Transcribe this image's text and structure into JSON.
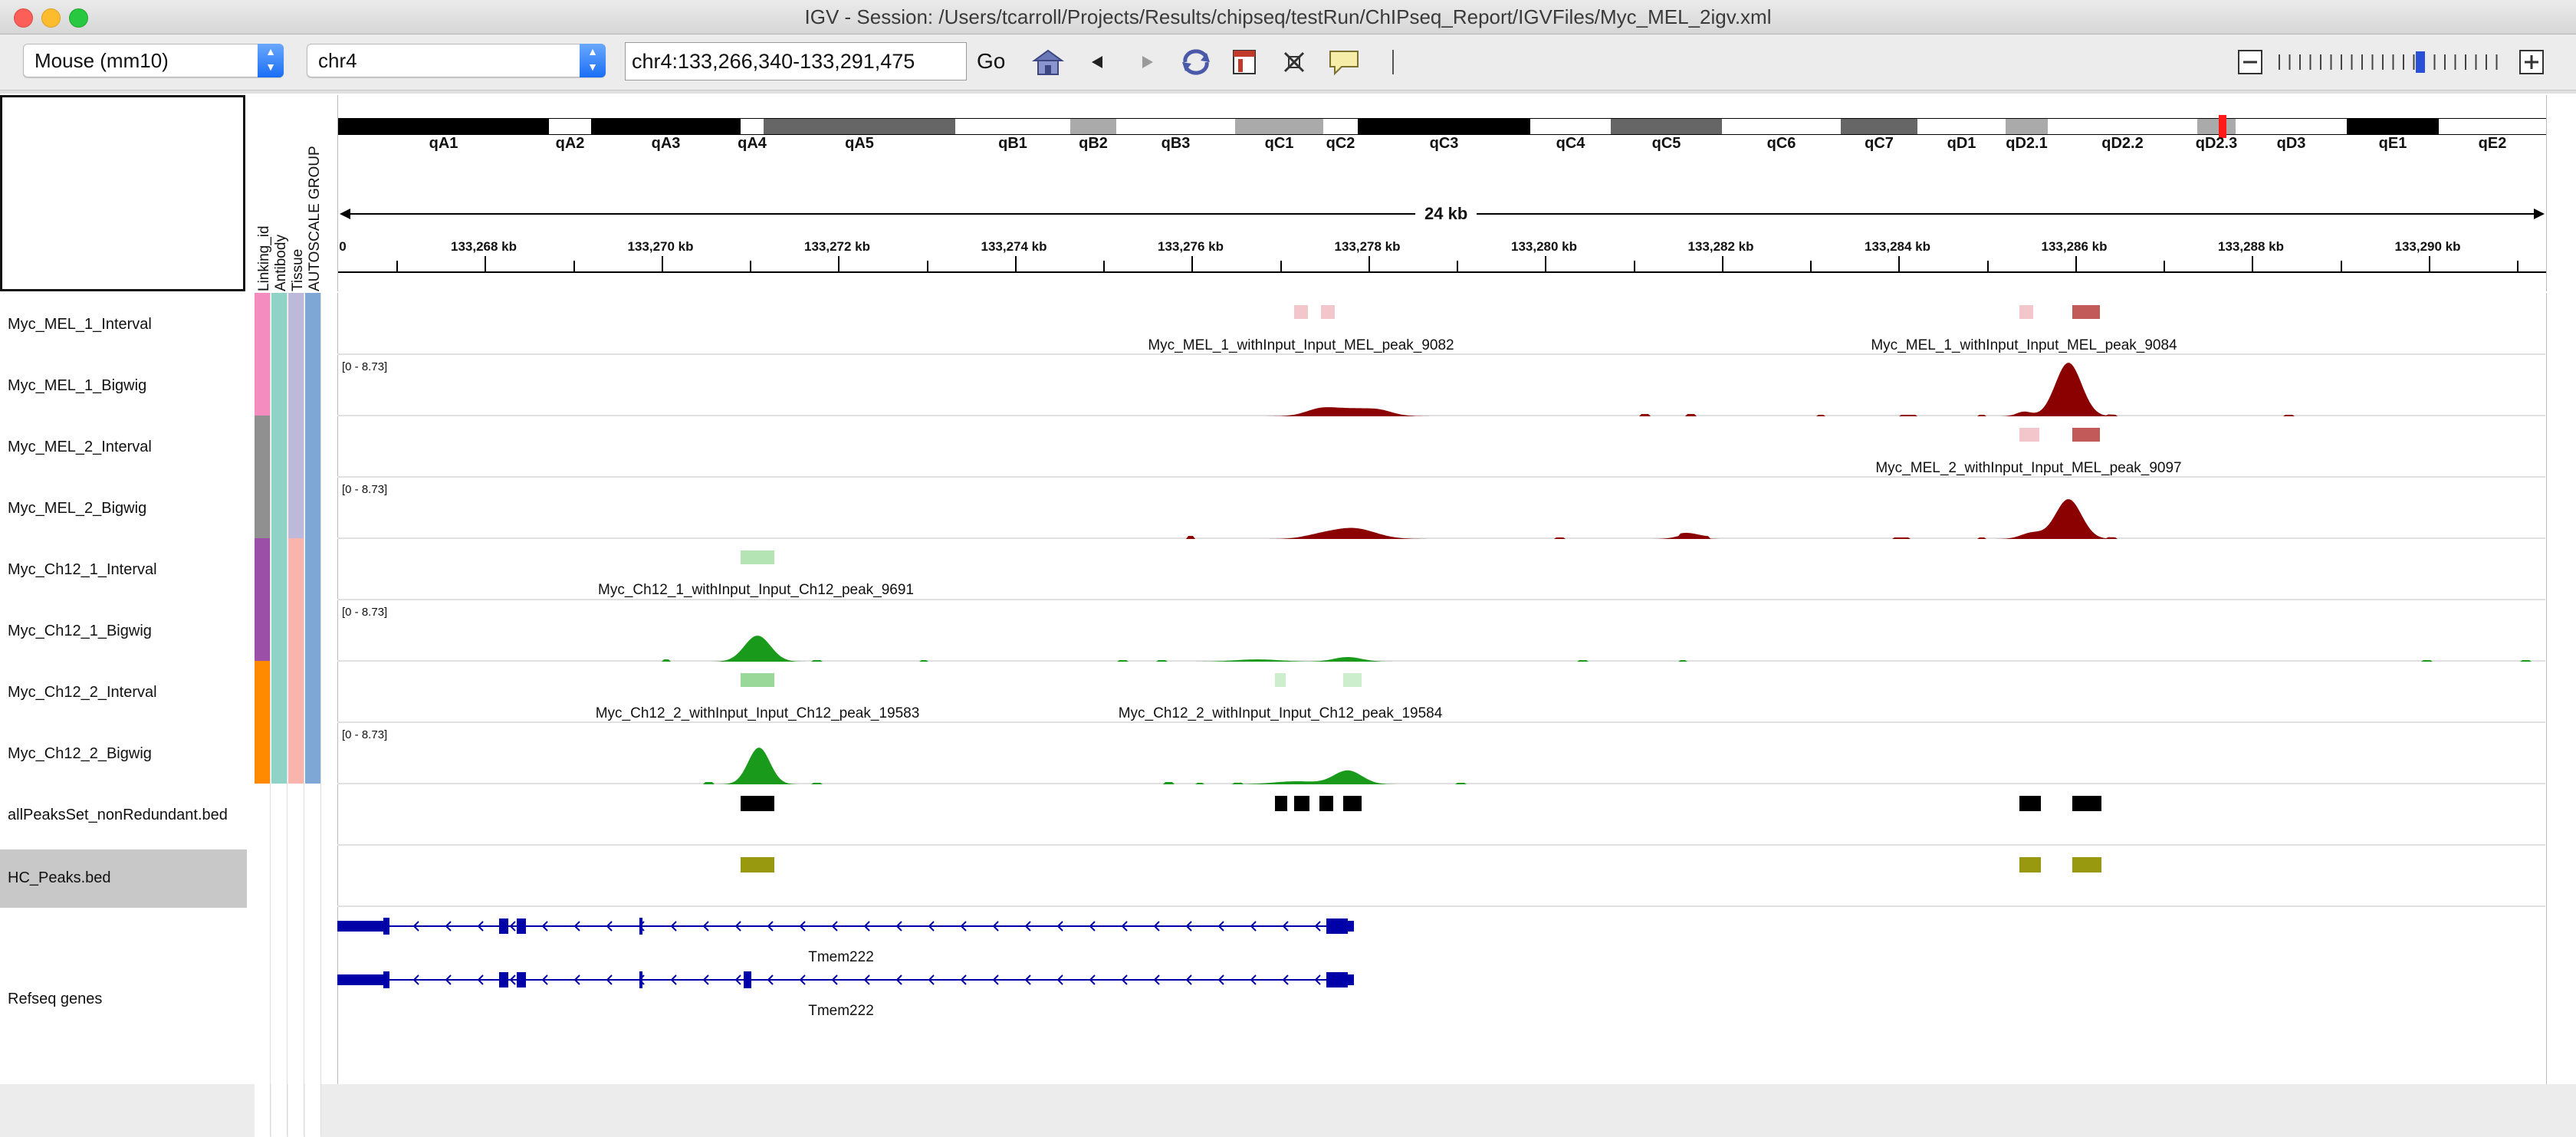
{
  "window": {
    "title": "IGV - Session: /Users/tcarroll/Projects/Results/chipseq/testRun/ChIPseq_Report/IGVFiles/Myc_MEL_2igv.xml"
  },
  "toolbar": {
    "genome": "Mouse (mm10)",
    "chromosome": "chr4",
    "locus": "chr4:133,266,340-133,291,475",
    "go_label": "Go"
  },
  "attributes": [
    "Linking_id",
    "Antibody",
    "Tissue",
    "AUTOSCALE GROUP"
  ],
  "ideogram": {
    "bands": [
      {
        "name": "qA1",
        "start": 0,
        "end": 275,
        "color": "#000000"
      },
      {
        "name": "qA2",
        "start": 275,
        "end": 330,
        "color": "#ffffff"
      },
      {
        "name": "qA3",
        "start": 330,
        "end": 525,
        "color": "#000000"
      },
      {
        "name": "qA4",
        "start": 525,
        "end": 555,
        "color": "#ffffff"
      },
      {
        "name": "qA5",
        "start": 555,
        "end": 805,
        "color": "#666666"
      },
      {
        "name": "qB1",
        "start": 805,
        "end": 955,
        "color": "#ffffff"
      },
      {
        "name": "qB2",
        "start": 955,
        "end": 1015,
        "color": "#aaaaaa"
      },
      {
        "name": "qB3",
        "start": 1015,
        "end": 1170,
        "color": "#ffffff"
      },
      {
        "name": "qC1",
        "start": 1170,
        "end": 1285,
        "color": "#aaaaaa"
      },
      {
        "name": "qC2",
        "start": 1285,
        "end": 1330,
        "color": "#ffffff"
      },
      {
        "name": "qC3",
        "start": 1330,
        "end": 1555,
        "color": "#000000"
      },
      {
        "name": "qC4",
        "start": 1555,
        "end": 1660,
        "color": "#ffffff"
      },
      {
        "name": "qC5",
        "start": 1660,
        "end": 1805,
        "color": "#666666"
      },
      {
        "name": "qC6",
        "start": 1805,
        "end": 1960,
        "color": "#ffffff"
      },
      {
        "name": "qC7",
        "start": 1960,
        "end": 2060,
        "color": "#666666"
      },
      {
        "name": "qD1",
        "start": 2060,
        "end": 2175,
        "color": "#ffffff"
      },
      {
        "name": "qD2.1",
        "start": 2175,
        "end": 2230,
        "color": "#aaaaaa"
      },
      {
        "name": "qD2.2",
        "start": 2230,
        "end": 2425,
        "color": "#ffffff"
      },
      {
        "name": "qD2.3",
        "start": 2425,
        "end": 2475,
        "color": "#aaaaaa"
      },
      {
        "name": "qD3",
        "start": 2475,
        "end": 2620,
        "color": "#ffffff"
      },
      {
        "name": "qE1",
        "start": 2620,
        "end": 2740,
        "color": "#000000"
      },
      {
        "name": "qE2",
        "start": 2740,
        "end": 2880,
        "color": "#ffffff"
      }
    ]
  },
  "ruler": {
    "scale": "24 kb",
    "start_label": "0",
    "ticks": [
      "133,268 kb",
      "133,270 kb",
      "133,272 kb",
      "133,274 kb",
      "133,276 kb",
      "133,278 kb",
      "133,280 kb",
      "133,282 kb",
      "133,284 kb",
      "133,286 kb",
      "133,288 kb",
      "133,290 kb"
    ]
  },
  "tracks": [
    {
      "name": "Myc_MEL_1_Interval",
      "colors": [
        "#f48cbf",
        "#8fd3c7",
        "#bdb9da",
        "#7ea7d6"
      ]
    },
    {
      "name": "Myc_MEL_1_Bigwig",
      "colors": [
        "#f48cbf",
        "#8fd3c7",
        "#bdb9da",
        "#7ea7d6"
      ],
      "range": "[0 - 8.73]"
    },
    {
      "name": "Myc_MEL_2_Interval",
      "colors": [
        "#909090",
        "#8fd3c7",
        "#bdb9da",
        "#7ea7d6"
      ]
    },
    {
      "name": "Myc_MEL_2_Bigwig",
      "colors": [
        "#909090",
        "#8fd3c7",
        "#bdb9da",
        "#7ea7d6"
      ],
      "range": "[0 - 8.73]"
    },
    {
      "name": "Myc_Ch12_1_Interval",
      "colors": [
        "#9b4fa6",
        "#8fd3c7",
        "#f9b4ae",
        "#7ea7d6"
      ]
    },
    {
      "name": "Myc_Ch12_1_Bigwig",
      "colors": [
        "#9b4fa6",
        "#8fd3c7",
        "#f9b4ae",
        "#7ea7d6"
      ],
      "range": "[0 - 8.73]"
    },
    {
      "name": "Myc_Ch12_2_Interval",
      "colors": [
        "#ff8a00",
        "#8fd3c7",
        "#f9b4ae",
        "#7ea7d6"
      ]
    },
    {
      "name": "Myc_Ch12_2_Bigwig",
      "colors": [
        "#ff8a00",
        "#8fd3c7",
        "#f9b4ae",
        "#7ea7d6"
      ],
      "range": "[0 - 8.73]"
    },
    {
      "name": "allPeaksSet_nonRedundant.bed"
    },
    {
      "name": "HC_Peaks.bed"
    },
    {
      "name": "Refseq genes"
    }
  ],
  "features": {
    "mel1_peak_a": "Myc_MEL_1_withInput_Input_MEL_peak_9082",
    "mel1_peak_b": "Myc_MEL_1_withInput_Input_MEL_peak_9084",
    "mel2_peak": "Myc_MEL_2_withInput_Input_MEL_peak_9097",
    "ch12_1_peak": "Myc_Ch12_1_withInput_Input_Ch12_peak_9691",
    "ch12_2_peak_a": "Myc_Ch12_2_withInput_Input_Ch12_peak_19583",
    "ch12_2_peak_b": "Myc_Ch12_2_withInput_Input_Ch12_peak_19584",
    "gene_1": "Tmem222",
    "gene_2": "Tmem222"
  },
  "colors": {
    "mel_signal": "#8b0000",
    "ch12_signal": "#1a9a1a",
    "hc_peaks": "#999910",
    "refseq": "#0000a8",
    "selected_track": "#c8c8c8"
  }
}
